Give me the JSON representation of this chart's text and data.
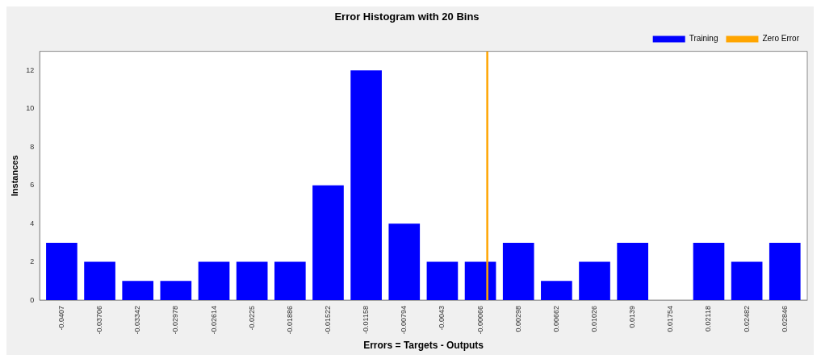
{
  "chart_data": {
    "type": "histogram",
    "title": "Error Histogram with 20 Bins",
    "xlabel": "Errors = Targets - Outputs",
    "ylabel": "Instances",
    "bins": [
      -0.04252,
      -0.03888,
      -0.03524,
      -0.0316,
      -0.02796,
      -0.02432,
      -0.02068,
      -0.01704,
      -0.0134,
      -0.00976,
      -0.00612,
      -0.00248,
      0.00116,
      0.0048,
      0.00844,
      0.01208,
      0.01572,
      0.01936,
      0.023,
      0.02664,
      0.03028
    ],
    "series": [
      {
        "name": "Training",
        "color": "#0000ff",
        "values": [
          3,
          2,
          1,
          1,
          2,
          2,
          2,
          6,
          12,
          4,
          2,
          2,
          3,
          1,
          2,
          3,
          0,
          3,
          2,
          3
        ]
      }
    ],
    "xlim": [
      -0.0428,
      0.0306
    ],
    "xticks": [
      {
        "value": -0.0407,
        "label": "-0.0407"
      },
      {
        "value": -0.03706,
        "label": "-0.03706"
      },
      {
        "value": -0.03342,
        "label": "-0.03342"
      },
      {
        "value": -0.02978,
        "label": "-0.02978"
      },
      {
        "value": -0.02614,
        "label": "-0.02614"
      },
      {
        "value": -0.0225,
        "label": "-0.0225"
      },
      {
        "value": -0.01886,
        "label": "-0.01886"
      },
      {
        "value": -0.01522,
        "label": "-0.01522"
      },
      {
        "value": -0.01158,
        "label": "-0.01158"
      },
      {
        "value": -0.00794,
        "label": "-0.00794"
      },
      {
        "value": -0.0043,
        "label": "-0.0043"
      },
      {
        "value": -0.00066,
        "label": "-0.00066"
      },
      {
        "value": 0.00298,
        "label": "0.00298"
      },
      {
        "value": 0.00662,
        "label": "0.00662"
      },
      {
        "value": 0.01026,
        "label": "0.01026"
      },
      {
        "value": 0.0139,
        "label": "0.0139"
      },
      {
        "value": 0.01754,
        "label": "0.01754"
      },
      {
        "value": 0.02118,
        "label": "0.02118"
      },
      {
        "value": 0.02482,
        "label": "0.02482"
      },
      {
        "value": 0.02846,
        "label": "0.02846"
      }
    ],
    "ylim": [
      0,
      13
    ],
    "yticks": [
      0,
      2,
      4,
      6,
      8,
      10,
      12
    ],
    "ref_lines": [
      {
        "axis": "x",
        "value": 0,
        "label": "Zero Error",
        "color": "#ffa500"
      }
    ],
    "legend": "top right",
    "grid": false
  }
}
